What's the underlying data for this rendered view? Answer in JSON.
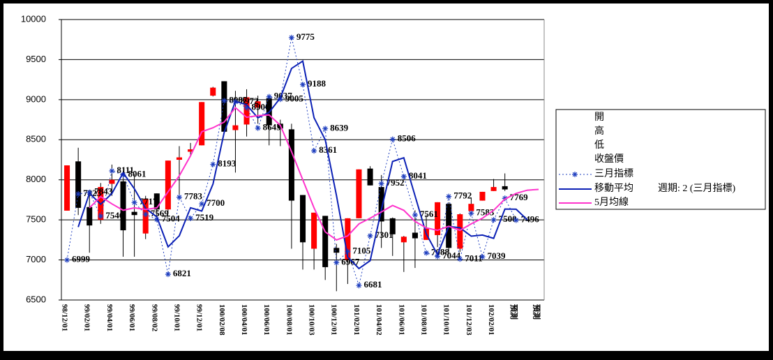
{
  "chart_data": {
    "type": "candlestick",
    "categories": [
      "98/12/01",
      null,
      "99/02/01",
      null,
      "99/04/01",
      null,
      "99/06/01",
      null,
      "99/08/02",
      null,
      "99/10/01",
      null,
      "99/12/01",
      null,
      "100/02/08",
      null,
      "100/04/01",
      null,
      "100/06/01",
      null,
      "100/08/01",
      null,
      "100/10/03",
      null,
      "100/12/01",
      null,
      "101/02/01",
      null,
      "101/04/02",
      null,
      "101/06/01",
      null,
      "101/08/01",
      null,
      "101/10/01",
      null,
      "101/12/03",
      null,
      "102/02/01",
      null,
      "預測",
      null,
      "預測"
    ],
    "candles": {
      "open_name": "開",
      "high_name": "高",
      "low_name": "低",
      "close_name": "收盤價",
      "up_color": "#ff0000",
      "down_color": "#000000",
      "open": [
        7615,
        8230,
        7660,
        7500,
        7950,
        7980,
        7600,
        7330,
        7830,
        7630,
        8250,
        8350,
        8430,
        9050,
        9230,
        8620,
        8690,
        8900,
        9020,
        8700,
        8630,
        7810,
        7140,
        7550,
        7150,
        7000,
        7520,
        8140,
        7910,
        7520,
        7220,
        7340,
        7250,
        7310,
        7700,
        7140,
        7610,
        7740,
        7860,
        7920,
        null,
        null,
        null
      ],
      "high": [
        8180,
        8400,
        7810,
        7960,
        8190,
        8110,
        8070,
        7800,
        7830,
        8240,
        8420,
        8460,
        8970,
        9160,
        9230,
        9110,
        9130,
        9050,
        9050,
        8750,
        8700,
        7810,
        7590,
        7550,
        7200,
        7520,
        8130,
        8170,
        8060,
        7530,
        7300,
        7620,
        7560,
        7720,
        7720,
        7580,
        7780,
        7850,
        8010,
        8080,
        null,
        null,
        null
      ],
      "low": [
        7615,
        7560,
        7090,
        7450,
        7800,
        7040,
        7040,
        7260,
        7500,
        7580,
        7770,
        8300,
        8430,
        9040,
        8600,
        8090,
        8540,
        8700,
        8430,
        8420,
        7140,
        6880,
        6880,
        6750,
        6610,
        6700,
        7520,
        7930,
        7150,
        7050,
        6850,
        6900,
        7250,
        7160,
        7100,
        7100,
        7610,
        7740,
        7860,
        7860,
        null,
        null,
        null
      ],
      "close": [
        8180,
        7650,
        7430,
        7910,
        8000,
        7370,
        7560,
        7760,
        7630,
        8240,
        8280,
        8380,
        8970,
        9150,
        8600,
        8680,
        9030,
        8980,
        8680,
        8640,
        7740,
        7220,
        7590,
        6910,
        7090,
        7520,
        8130,
        7930,
        7480,
        7320,
        7290,
        7270,
        7390,
        7720,
        7150,
        7570,
        7700,
        7850,
        7910,
        7880,
        null,
        null,
        null
      ]
    },
    "series": [
      {
        "name": "三月指標",
        "color": "#1f3fbf",
        "style": "dotted-marker",
        "values": [
          6999,
          7823,
          7843,
          7546,
          8111,
          8061,
          7717,
          7569,
          7504,
          6821,
          7783,
          7519,
          7700,
          8193,
          8987,
          8972,
          8900,
          8645,
          9037,
          9005,
          9775,
          9188,
          8361,
          8639,
          6967,
          7105,
          6681,
          7301,
          7952,
          8506,
          8041,
          7561,
          7088,
          7044,
          7792,
          7011,
          7583,
          7039,
          7500,
          7769,
          7496,
          null,
          null
        ]
      },
      {
        "name": "移動平均",
        "note": "週期: 2 (三月指標)",
        "color": "#0a1fb5",
        "style": "solid",
        "values": [
          null,
          7411,
          7833,
          7695,
          7829,
          8086,
          7889,
          7643,
          7537,
          7163,
          7302,
          7651,
          7610,
          7947,
          8590,
          8980,
          8936,
          8773,
          8841,
          9021,
          9390,
          9482,
          8775,
          8500,
          7803,
          7036,
          6893,
          6991,
          7627,
          8229,
          8274,
          7801,
          7325,
          7066,
          7418,
          7402,
          7297,
          7311,
          7270,
          7635,
          7633,
          7500,
          null
        ]
      },
      {
        "name": "5月均線",
        "color": "#ff33cc",
        "style": "solid",
        "values": [
          null,
          null,
          7650,
          7790,
          7700,
          7620,
          7650,
          7630,
          7650,
          7850,
          8050,
          8300,
          8600,
          8650,
          8720,
          8900,
          8780,
          8800,
          8810,
          8680,
          8350,
          8000,
          7650,
          7350,
          7250,
          7300,
          7450,
          7520,
          7600,
          7680,
          7620,
          7480,
          7400,
          7370,
          7420,
          7370,
          7450,
          7520,
          7620,
          7760,
          7830,
          7870,
          7880
        ]
      }
    ],
    "ylim": [
      6500,
      10000
    ],
    "yticks": [
      6500,
      7000,
      7500,
      8000,
      8500,
      9000,
      9500,
      10000
    ],
    "grid": true
  }
}
